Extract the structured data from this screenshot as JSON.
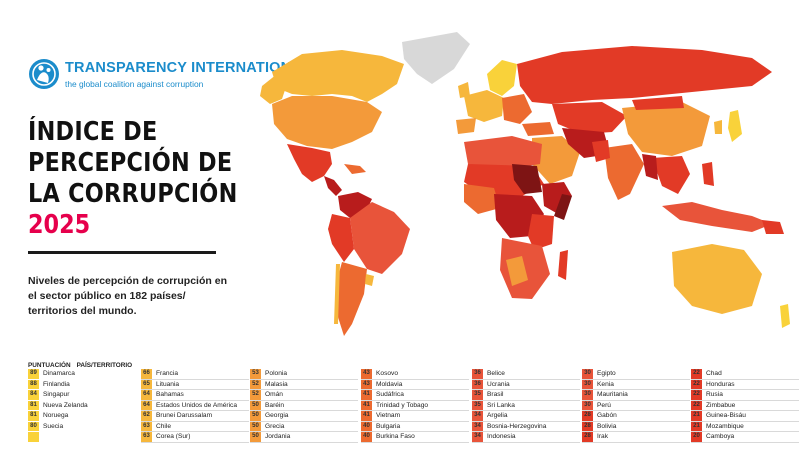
{
  "logo": {
    "title": "TRANSPARENCY INTERNATIONAL",
    "tagline": "the global coalition against corruption",
    "icon": "globe-people-icon"
  },
  "title": {
    "lines": [
      "ÍNDICE DE",
      "PERCEPCIÓN DE",
      "LA CORRUPCIÓN"
    ],
    "year": "2025"
  },
  "subtitle": "Niveles de percepción de corrupción en el sector público en 182 países/ territorios del mundo.",
  "colors": {
    "yellow": "#f9d23a",
    "light_orange": "#f6b73c",
    "orange": "#f39a3a",
    "orange_red": "#ec6a30",
    "red": "#e23a26",
    "dark_red": "#b81c1c",
    "darkest_red": "#7e1414",
    "no_data": "#d8d8d8",
    "brand_blue": "#1b8ccb",
    "year_pink": "#e6004c"
  },
  "table": {
    "header_score": "PUNTUACIÓN",
    "header_country": "PAÍS/TERRITORIO",
    "columns": [
      [
        {
          "score": "89",
          "name": "Dinamarca",
          "color": "#f9d23a"
        },
        {
          "score": "88",
          "name": "Finlandia",
          "color": "#f9d23a"
        },
        {
          "score": "84",
          "name": "Singapur",
          "color": "#f9d23a"
        },
        {
          "score": "81",
          "name": "Nueva Zelanda",
          "color": "#f9d23a"
        },
        {
          "score": "81",
          "name": "Noruega",
          "color": "#f9d23a"
        },
        {
          "score": "80",
          "name": "Suecia",
          "color": "#f9d23a"
        },
        {
          "score": "",
          "name": "",
          "color": "#f9d23a"
        }
      ],
      [
        {
          "score": "66",
          "name": "Francia",
          "color": "#f6b73c"
        },
        {
          "score": "65",
          "name": "Lituania",
          "color": "#f6b73c"
        },
        {
          "score": "64",
          "name": "Bahamas",
          "color": "#f6b73c"
        },
        {
          "score": "64",
          "name": "Estados Unidos de América",
          "color": "#f6b73c"
        },
        {
          "score": "62",
          "name": "Brunei Darussalam",
          "color": "#f6b73c"
        },
        {
          "score": "63",
          "name": "Chile",
          "color": "#f6b73c"
        },
        {
          "score": "63",
          "name": "Corea (Sur)",
          "color": "#f6b73c"
        }
      ],
      [
        {
          "score": "53",
          "name": "Polonia",
          "color": "#f39a3a"
        },
        {
          "score": "52",
          "name": "Malasia",
          "color": "#f39a3a"
        },
        {
          "score": "52",
          "name": "Omán",
          "color": "#f39a3a"
        },
        {
          "score": "50",
          "name": "Baréin",
          "color": "#f39a3a"
        },
        {
          "score": "50",
          "name": "Georgia",
          "color": "#f39a3a"
        },
        {
          "score": "50",
          "name": "Grecia",
          "color": "#f39a3a"
        },
        {
          "score": "50",
          "name": "Jordania",
          "color": "#f39a3a"
        }
      ],
      [
        {
          "score": "43",
          "name": "Kosovo",
          "color": "#ec6a30"
        },
        {
          "score": "43",
          "name": "Moldavia",
          "color": "#ec6a30"
        },
        {
          "score": "41",
          "name": "Sudáfrica",
          "color": "#ec6a30"
        },
        {
          "score": "41",
          "name": "Trinidad y Tobago",
          "color": "#ec6a30"
        },
        {
          "score": "41",
          "name": "Vietnam",
          "color": "#ec6a30"
        },
        {
          "score": "40",
          "name": "Bulgaria",
          "color": "#ec6a30"
        },
        {
          "score": "40",
          "name": "Burkina Faso",
          "color": "#ec6a30"
        }
      ],
      [
        {
          "score": "36",
          "name": "Belice",
          "color": "#e8543a"
        },
        {
          "score": "36",
          "name": "Ucrania",
          "color": "#e8543a"
        },
        {
          "score": "35",
          "name": "Brasil",
          "color": "#e8543a"
        },
        {
          "score": "35",
          "name": "Sri Lanka",
          "color": "#e8543a"
        },
        {
          "score": "34",
          "name": "Argelia",
          "color": "#e8543a"
        },
        {
          "score": "34",
          "name": "Bosnia-Herzegovina",
          "color": "#e8543a"
        },
        {
          "score": "34",
          "name": "Indonesia",
          "color": "#e8543a"
        }
      ],
      [
        {
          "score": "30",
          "name": "Egipto",
          "color": "#e8543a"
        },
        {
          "score": "30",
          "name": "Kenia",
          "color": "#e8543a"
        },
        {
          "score": "30",
          "name": "Mauritania",
          "color": "#e8543a"
        },
        {
          "score": "30",
          "name": "Perú",
          "color": "#e8543a"
        },
        {
          "score": "28",
          "name": "Gabón",
          "color": "#e23a26"
        },
        {
          "score": "28",
          "name": "Bolivia",
          "color": "#e23a26"
        },
        {
          "score": "28",
          "name": "Irak",
          "color": "#e23a26"
        }
      ],
      [
        {
          "score": "22",
          "name": "Chad",
          "color": "#e23a26"
        },
        {
          "score": "22",
          "name": "Honduras",
          "color": "#e23a26"
        },
        {
          "score": "22",
          "name": "Rusia",
          "color": "#e23a26"
        },
        {
          "score": "22",
          "name": "Zimbabue",
          "color": "#e23a26"
        },
        {
          "score": "21",
          "name": "Guinea-Bisáu",
          "color": "#e23a26"
        },
        {
          "score": "21",
          "name": "Mozambique",
          "color": "#e23a26"
        },
        {
          "score": "20",
          "name": "Camboya",
          "color": "#e23a26"
        }
      ]
    ]
  }
}
